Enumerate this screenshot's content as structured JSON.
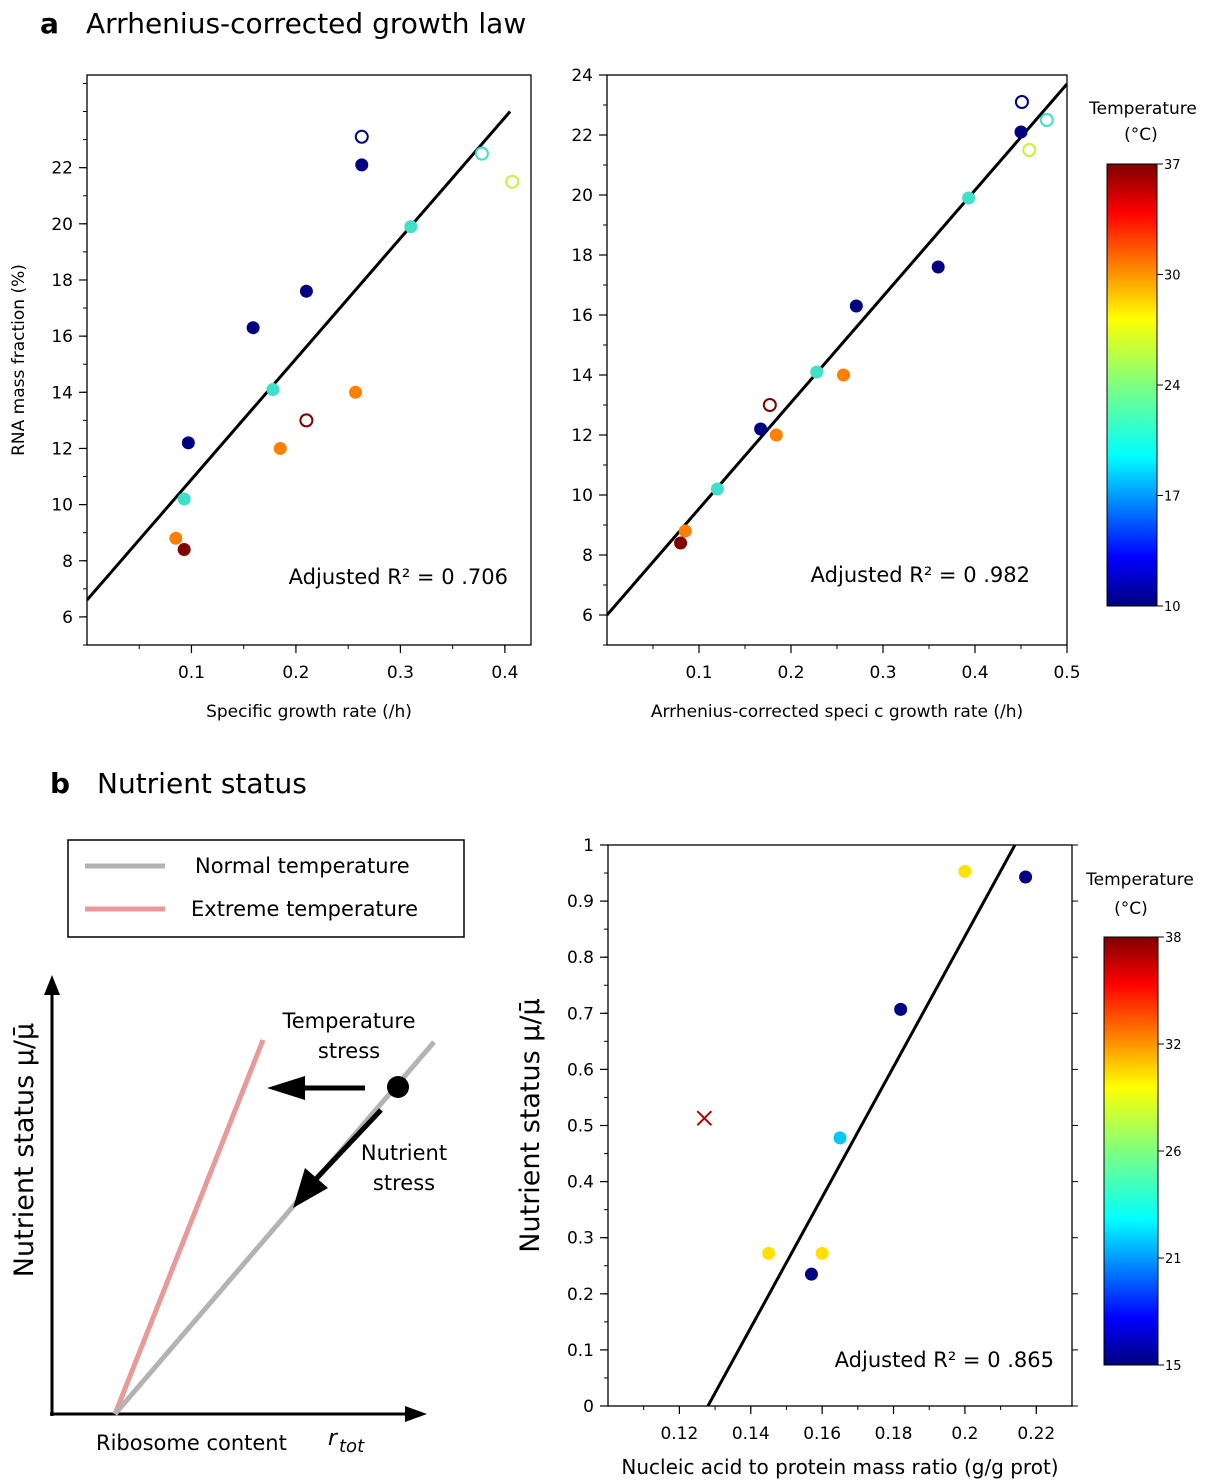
{
  "panel_a": {
    "letter": "a",
    "title": "Arrhenius-corrected growth law"
  },
  "panel_b": {
    "letter": "b",
    "title": "Nutrient status"
  },
  "colorbar_top": {
    "title_line1": "Temperature",
    "title_line2": "(°C)",
    "ticks": [
      "37",
      "30",
      "24",
      "17",
      "10"
    ]
  },
  "colorbar_bottom": {
    "title_line1": "Temperature",
    "title_line2": "(°C)",
    "ticks": [
      "38",
      "32",
      "26",
      "21",
      "15"
    ]
  },
  "schematic": {
    "legend": [
      "Normal temperature",
      "Extreme temperature"
    ],
    "colors": {
      "normal": "#b3b3b3",
      "extreme": "#e89a9a"
    },
    "ylabel": "Nutrient status μ/μ̄",
    "xlabel": "Ribosome content",
    "xlabel_symbol": "r",
    "xlabel_subscript": "tot",
    "temp_stress_line1": "Temperature",
    "temp_stress_line2": "stress",
    "nutrient_stress_line1": "Nutrient",
    "nutrient_stress_line2": "stress"
  },
  "chart_data": [
    {
      "id": "a1",
      "type": "scatter",
      "xlabel": "Specific growth rate (/h)",
      "ylabel": "RNA mass fraction (%)",
      "xlim": [
        0,
        0.425
      ],
      "ylim": [
        5,
        25.3
      ],
      "xticks": [
        "0.1",
        "0.2",
        "0.3",
        "0.4"
      ],
      "yticks": [
        "6",
        "8",
        "10",
        "12",
        "14",
        "16",
        "18",
        "20",
        "22"
      ],
      "annotation": "Adjusted R² = 0 .706",
      "fit_line": [
        [
          0,
          6.6
        ],
        [
          0.405,
          24.0
        ]
      ],
      "points": [
        {
          "x": 0.263,
          "y": 23.1,
          "color": "#000080",
          "open": true
        },
        {
          "x": 0.263,
          "y": 22.1,
          "color": "#000080",
          "open": false
        },
        {
          "x": 0.378,
          "y": 22.5,
          "color": "#40e0c8",
          "open": true
        },
        {
          "x": 0.407,
          "y": 21.5,
          "color": "#c8f040",
          "open": true
        },
        {
          "x": 0.31,
          "y": 19.9,
          "color": "#40e0c8",
          "open": false
        },
        {
          "x": 0.21,
          "y": 17.6,
          "color": "#000080",
          "open": false
        },
        {
          "x": 0.159,
          "y": 16.3,
          "color": "#000080",
          "open": false
        },
        {
          "x": 0.178,
          "y": 14.1,
          "color": "#40e0c8",
          "open": false
        },
        {
          "x": 0.257,
          "y": 14.0,
          "color": "#ff8000",
          "open": false
        },
        {
          "x": 0.21,
          "y": 13.0,
          "color": "#800000",
          "open": true
        },
        {
          "x": 0.185,
          "y": 12.0,
          "color": "#ff8000",
          "open": false
        },
        {
          "x": 0.097,
          "y": 12.2,
          "color": "#000080",
          "open": false
        },
        {
          "x": 0.093,
          "y": 10.2,
          "color": "#40e0c8",
          "open": false
        },
        {
          "x": 0.085,
          "y": 8.8,
          "color": "#ff8000",
          "open": false
        },
        {
          "x": 0.093,
          "y": 8.4,
          "color": "#800000",
          "open": false
        }
      ]
    },
    {
      "id": "a2",
      "type": "scatter",
      "xlabel": "Arrhenius-corrected speci  c growth rate (/h)",
      "ylabel": "",
      "xlim": [
        0,
        0.5
      ],
      "ylim": [
        5,
        24
      ],
      "xticks": [
        "0.1",
        "0.2",
        "0.3",
        "0.4",
        "0.5"
      ],
      "yticks": [
        "6",
        "8",
        "10",
        "12",
        "14",
        "16",
        "18",
        "20",
        "22",
        "24"
      ],
      "annotation": "Adjusted R² = 0 .982",
      "fit_line": [
        [
          0,
          6.0
        ],
        [
          0.5,
          23.7
        ]
      ],
      "points": [
        {
          "x": 0.451,
          "y": 23.1,
          "color": "#000080",
          "open": true
        },
        {
          "x": 0.45,
          "y": 22.1,
          "color": "#000080",
          "open": false
        },
        {
          "x": 0.478,
          "y": 22.5,
          "color": "#40e0c8",
          "open": true
        },
        {
          "x": 0.459,
          "y": 21.5,
          "color": "#c8f040",
          "open": true
        },
        {
          "x": 0.393,
          "y": 19.9,
          "color": "#40e0c8",
          "open": false
        },
        {
          "x": 0.36,
          "y": 17.6,
          "color": "#000080",
          "open": false
        },
        {
          "x": 0.271,
          "y": 16.3,
          "color": "#000080",
          "open": false
        },
        {
          "x": 0.228,
          "y": 14.1,
          "color": "#40e0c8",
          "open": false
        },
        {
          "x": 0.257,
          "y": 14.0,
          "color": "#ff8000",
          "open": false
        },
        {
          "x": 0.177,
          "y": 13.0,
          "color": "#800000",
          "open": true
        },
        {
          "x": 0.184,
          "y": 12.0,
          "color": "#ff8000",
          "open": false
        },
        {
          "x": 0.167,
          "y": 12.2,
          "color": "#000080",
          "open": false
        },
        {
          "x": 0.12,
          "y": 10.2,
          "color": "#40e0c8",
          "open": false
        },
        {
          "x": 0.085,
          "y": 8.8,
          "color": "#ff8000",
          "open": false
        },
        {
          "x": 0.08,
          "y": 8.4,
          "color": "#800000",
          "open": false
        }
      ]
    },
    {
      "id": "b1",
      "type": "scatter",
      "xlabel": "Nucleic acid to protein mass ratio (g/g prot)",
      "ylabel": "Nutrient status μ/μ̄",
      "xlim": [
        0.1,
        0.23
      ],
      "ylim": [
        0,
        1
      ],
      "xticks": [
        "0.12",
        "0.14",
        "0.16",
        "0.18",
        "0.2",
        "0.22"
      ],
      "yticks": [
        "0",
        "0.1",
        "0.2",
        "0.3",
        "0.4",
        "0.5",
        "0.6",
        "0.7",
        "0.8",
        "0.9",
        "1"
      ],
      "annotation": "Adjusted R² = 0 .865",
      "fit_line": [
        [
          0.128,
          0
        ],
        [
          0.214,
          1
        ]
      ],
      "points": [
        {
          "x": 0.217,
          "y": 0.943,
          "color": "#000080",
          "marker": "circle"
        },
        {
          "x": 0.2,
          "y": 0.953,
          "color": "#ffe000",
          "marker": "circle"
        },
        {
          "x": 0.182,
          "y": 0.707,
          "color": "#000080",
          "marker": "circle"
        },
        {
          "x": 0.165,
          "y": 0.478,
          "color": "#00c8f0",
          "marker": "circle"
        },
        {
          "x": 0.145,
          "y": 0.272,
          "color": "#ffe000",
          "marker": "circle"
        },
        {
          "x": 0.16,
          "y": 0.272,
          "color": "#ffe000",
          "marker": "circle"
        },
        {
          "x": 0.157,
          "y": 0.235,
          "color": "#000080",
          "marker": "circle"
        },
        {
          "x": 0.127,
          "y": 0.513,
          "color": "#b00000",
          "marker": "x"
        }
      ]
    }
  ]
}
